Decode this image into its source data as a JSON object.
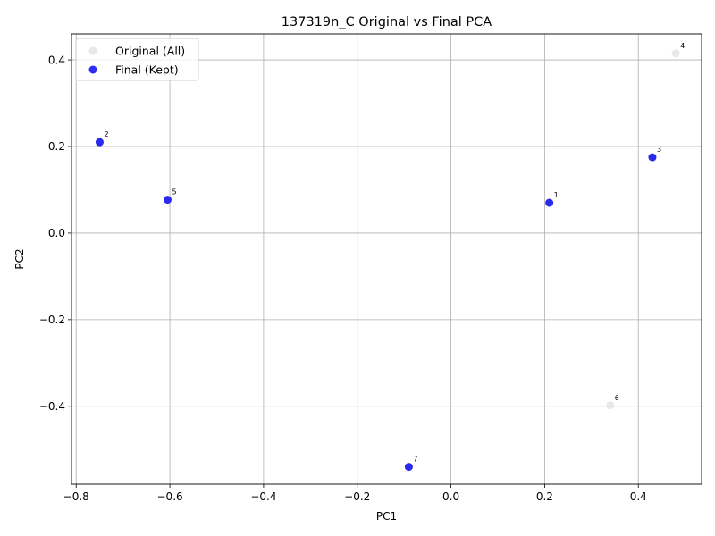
{
  "chart_data": {
    "type": "scatter",
    "title": "137319n_C Original vs Final PCA",
    "xlabel": "PC1",
    "ylabel": "PC2",
    "xlim": [
      -0.81,
      0.535
    ],
    "ylim": [
      -0.58,
      0.46
    ],
    "xticks": [
      -0.8,
      -0.6,
      -0.4,
      -0.2,
      0.0,
      0.2,
      0.4
    ],
    "xtick_labels": [
      "−0.8",
      "−0.6",
      "−0.4",
      "−0.2",
      "0.0",
      "0.2",
      "0.4"
    ],
    "yticks": [
      -0.4,
      -0.2,
      0.0,
      0.2,
      0.4
    ],
    "ytick_labels": [
      "−0.4",
      "−0.2",
      "0.0",
      "0.2",
      "0.4"
    ],
    "grid": true,
    "legend_position": "top-left",
    "series": [
      {
        "name": "Original (All)",
        "color": "#d9d9d9",
        "points": [
          {
            "label": "1",
            "x": 0.21,
            "y": 0.07
          },
          {
            "label": "2",
            "x": -0.75,
            "y": 0.21
          },
          {
            "label": "3",
            "x": 0.43,
            "y": 0.175
          },
          {
            "label": "4",
            "x": 0.48,
            "y": 0.415
          },
          {
            "label": "5",
            "x": -0.605,
            "y": 0.077
          },
          {
            "label": "6",
            "x": 0.34,
            "y": -0.398
          },
          {
            "label": "7",
            "x": -0.09,
            "y": -0.54
          }
        ]
      },
      {
        "name": "Final (Kept)",
        "color": "#0000ee",
        "points": [
          {
            "label": "1",
            "x": 0.21,
            "y": 0.07
          },
          {
            "label": "2",
            "x": -0.75,
            "y": 0.21
          },
          {
            "label": "3",
            "x": 0.43,
            "y": 0.175
          },
          {
            "label": "5",
            "x": -0.605,
            "y": 0.077
          },
          {
            "label": "7",
            "x": -0.09,
            "y": -0.54
          }
        ]
      }
    ]
  }
}
